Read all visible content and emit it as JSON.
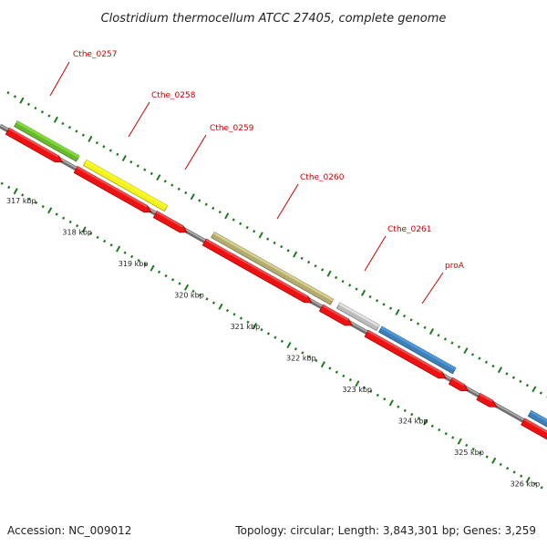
{
  "title": "Clostridium thermocellum ATCC 27405, complete genome",
  "footer": {
    "accession": "Accession: NC_009012",
    "summary": "Topology: circular; Length: 3,843,301 bp; Genes: 3,259"
  },
  "colors": {
    "backbone": "#8c8c8c",
    "cds": "#ee1111",
    "tick": "#1f7a1f",
    "label": "#cc0000"
  },
  "tick_labels": [
    "317 kbp",
    "318 kbp",
    "319 kbp",
    "320 kbp",
    "321 kbp",
    "322 kbp",
    "323 kbp",
    "324 kbp",
    "325 kbp",
    "326 kbp"
  ],
  "genes": [
    {
      "name": "Cthe_0257",
      "color": "#6ab82e"
    },
    {
      "name": "Cthe_0258",
      "color": "#f2f21e"
    },
    {
      "name": "Cthe_0259",
      "color": null
    },
    {
      "name": "Cthe_0260",
      "color": "#b3ac72"
    },
    {
      "name": "Cthe_0261",
      "color": "#bcbcbc"
    },
    {
      "name": "proA",
      "color": "#3f7fb8"
    }
  ]
}
